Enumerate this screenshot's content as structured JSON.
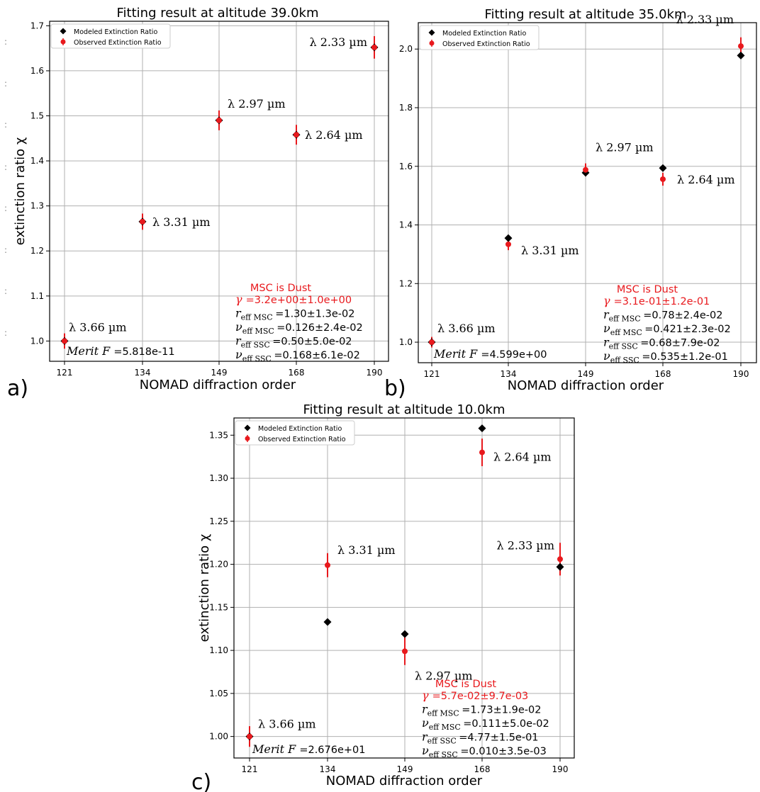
{
  "colors": {
    "modeled": "#000000",
    "observed": "#e8191d",
    "grid": "#b0b0b0"
  },
  "chart_data": [
    {
      "type": "scatter",
      "panel_label": "a)",
      "title": "Fitting result at altitude 39.0km",
      "xlabel": "NOMAD diffraction order",
      "ylabel": "extinction ratio χ",
      "xticks": [
        "121",
        "134",
        "149",
        "168",
        "190"
      ],
      "ylim": [
        0.955,
        1.71
      ],
      "yticks": [
        1.0,
        1.1,
        1.2,
        1.3,
        1.4,
        1.5,
        1.6,
        1.7
      ],
      "ytick_labels": [
        "1.0",
        "1.1",
        "1.2",
        "1.3",
        "1.4",
        "1.5",
        "1.6",
        "1.7"
      ],
      "legend": {
        "modeled": "Modeled Extinction Ratio",
        "observed": "Observed Extinction Ratio",
        "placement": "top-left"
      },
      "grid": true,
      "series": [
        {
          "name": "Modeled Extinction Ratio",
          "marker": "diamond",
          "values": [
            1.0,
            1.265,
            1.49,
            1.458,
            1.652
          ]
        },
        {
          "name": "Observed Extinction Ratio",
          "marker": "circle",
          "values": [
            1.0,
            1.265,
            1.49,
            1.458,
            1.652
          ],
          "err": [
            0.017,
            0.018,
            0.022,
            0.022,
            0.025
          ]
        }
      ],
      "point_labels": [
        "λ 3.66 µm",
        "λ 3.31 µm",
        "λ 2.97 µm",
        "λ 2.64 µm",
        "λ 2.33 µm"
      ],
      "merit_label": "Merit F",
      "merit_value": "=5.818e-11",
      "annotation": {
        "heading": "MSC is Dust",
        "gamma": "=3.2e+00±1.0e+00",
        "r_msc": "=1.30±1.3e-02",
        "nu_msc": "=0.126±2.4e-02",
        "r_ssc": "=0.50±5.0e-02",
        "nu_ssc": "=0.168±6.1e-02"
      }
    },
    {
      "type": "scatter",
      "panel_label": "b)",
      "title": "Fitting result at altitude 35.0km",
      "xlabel": "NOMAD diffraction order",
      "ylabel": "",
      "xticks": [
        "121",
        "134",
        "149",
        "168",
        "190"
      ],
      "ylim": [
        0.93,
        2.09
      ],
      "yticks": [
        1.0,
        1.2,
        1.4,
        1.6,
        1.8,
        2.0
      ],
      "ytick_labels": [
        "1.0",
        "1.2",
        "1.4",
        "1.6",
        "1.8",
        "2.0"
      ],
      "legend": {
        "modeled": "Modeled Extinction Ratio",
        "observed": "Observed Extinction Ratio",
        "placement": "top-left"
      },
      "grid": true,
      "series": [
        {
          "name": "Modeled Extinction Ratio",
          "marker": "diamond",
          "values": [
            1.0,
            1.355,
            1.578,
            1.594,
            1.978
          ]
        },
        {
          "name": "Observed Extinction Ratio",
          "marker": "circle",
          "values": [
            1.0,
            1.334,
            1.588,
            1.556,
            2.01
          ],
          "err": [
            0.018,
            0.02,
            0.022,
            0.022,
            0.03
          ]
        }
      ],
      "point_labels": [
        "λ 3.66 µm",
        "λ 3.31 µm",
        "λ 2.97 µm",
        "λ 2.64 µm",
        "λ 2.33 µm"
      ],
      "merit_label": "Merit F",
      "merit_value": "=4.599e+00",
      "annotation": {
        "heading": "MSC is Dust",
        "gamma": "=3.1e-01±1.2e-01",
        "r_msc": "=0.78±2.4e-02",
        "nu_msc": "=0.421±2.3e-02",
        "r_ssc": "=0.68±7.9e-02",
        "nu_ssc": "=0.535±1.2e-01"
      }
    },
    {
      "type": "scatter",
      "panel_label": "c)",
      "title": "Fitting result at altitude 10.0km",
      "xlabel": "NOMAD diffraction order",
      "ylabel": "extinction ratio χ",
      "xticks": [
        "121",
        "134",
        "149",
        "168",
        "190"
      ],
      "ylim": [
        0.975,
        1.37
      ],
      "yticks": [
        1.0,
        1.05,
        1.1,
        1.15,
        1.2,
        1.25,
        1.3,
        1.35
      ],
      "ytick_labels": [
        "1.00",
        "1.05",
        "1.10",
        "1.15",
        "1.20",
        "1.25",
        "1.30",
        "1.35"
      ],
      "legend": {
        "modeled": "Modeled Extinction Ratio",
        "observed": "Observed Extinction Ratio",
        "placement": "top-left"
      },
      "grid": true,
      "series": [
        {
          "name": "Modeled Extinction Ratio",
          "marker": "diamond",
          "values": [
            1.0,
            1.133,
            1.119,
            1.358,
            1.197
          ]
        },
        {
          "name": "Observed Extinction Ratio",
          "marker": "circle",
          "values": [
            1.0,
            1.199,
            1.099,
            1.33,
            1.206
          ],
          "err": [
            0.012,
            0.014,
            0.016,
            0.016,
            0.019
          ]
        }
      ],
      "point_labels": [
        "λ 3.66 µm",
        "λ 3.31 µm",
        "λ 2.97 µm",
        "λ 2.64 µm",
        "λ 2.33 µm"
      ],
      "merit_label": "Merit F",
      "merit_value": "=2.676e+01",
      "annotation": {
        "heading": "MSC is Dust",
        "gamma": "=5.7e-02±9.7e-03",
        "r_msc": "=1.73±1.9e-02",
        "nu_msc": "=0.111±5.0e-02",
        "r_ssc": "=4.77±1.5e-01",
        "nu_ssc": "=0.010±3.5e-03"
      }
    }
  ]
}
